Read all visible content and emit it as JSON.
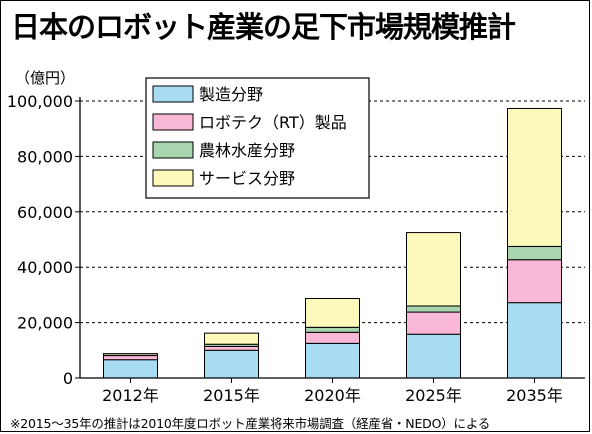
{
  "title": "日本のロボット産業の足下市場規模推計",
  "unit": "（億円）",
  "footnote": "※2015〜35年の推計は2010年度ロボット産業将来市場調査（経産省・NEDO）による",
  "colors": {
    "manufacturing": "#a8dcf3",
    "robotech": "#f9b9d6",
    "agriculture": "#a8d4b0",
    "service": "#fcf9ba",
    "stroke": "#000000",
    "grid": "#000000"
  },
  "chart_data": {
    "type": "bar",
    "stacked": true,
    "categories": [
      "2012年",
      "2015年",
      "2020年",
      "2025年",
      "2035年"
    ],
    "series": [
      {
        "name": "製造分野",
        "color_key": "manufacturing",
        "values": [
          6600,
          10000,
          12500,
          15800,
          27200
        ]
      },
      {
        "name": "ロボテク（RT）製品",
        "color_key": "robotech",
        "values": [
          1500,
          1400,
          4000,
          8000,
          15500
        ]
      },
      {
        "name": "農林水産分野",
        "color_key": "agriculture",
        "values": [
          100,
          800,
          1800,
          2200,
          4800
        ]
      },
      {
        "name": "サービス分野",
        "color_key": "service",
        "values": [
          600,
          4000,
          10400,
          26500,
          49800
        ]
      }
    ],
    "ylim": [
      0,
      100000
    ],
    "yticks": [
      0,
      20000,
      40000,
      60000,
      80000,
      100000
    ],
    "ytick_labels": [
      "0",
      "20,000",
      "40,000",
      "60,000",
      "80,000",
      "100,000"
    ],
    "grid": "horizontal-dashed",
    "legend": "top-left"
  }
}
